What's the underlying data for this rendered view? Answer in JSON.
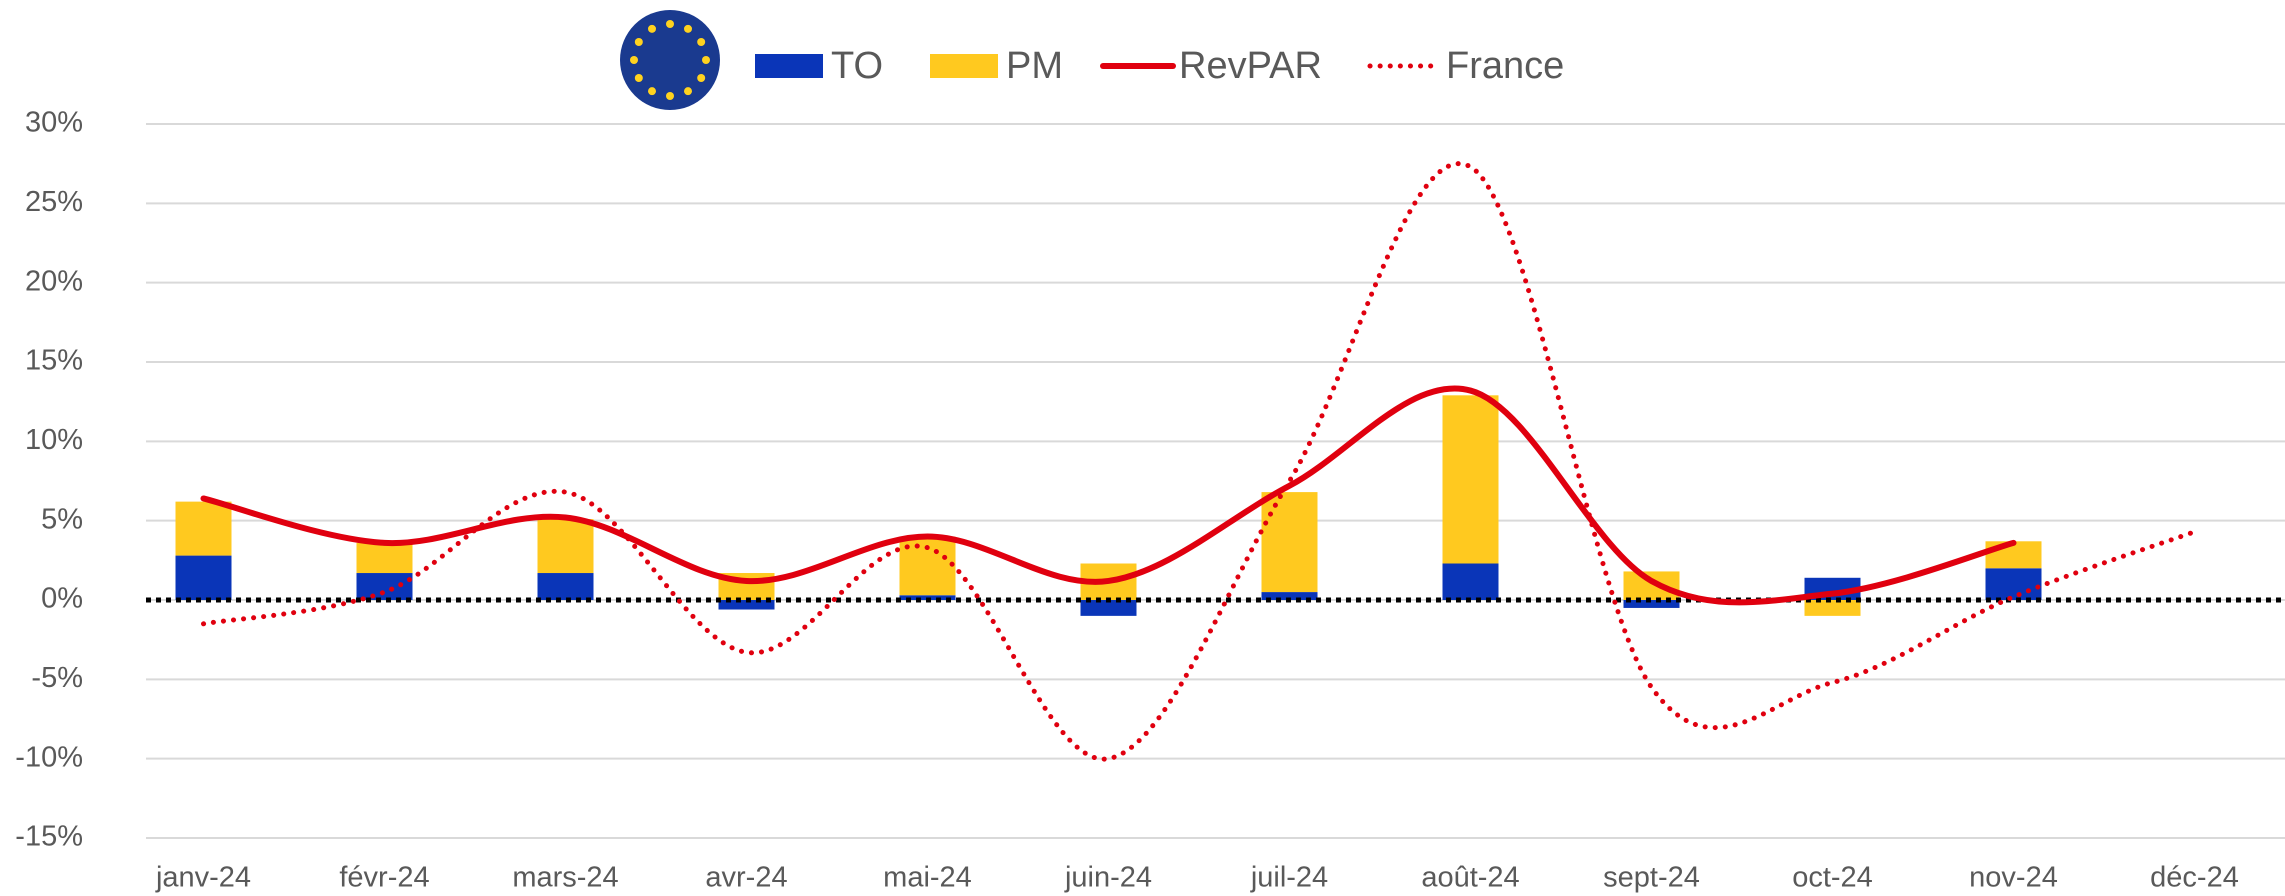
{
  "chart_data": {
    "type": "bar",
    "stacked": true,
    "categories": [
      "janv-24",
      "févr-24",
      "mars-24",
      "avr-24",
      "mai-24",
      "juin-24",
      "juil-24",
      "août-24",
      "sept-24",
      "oct-24",
      "nov-24",
      "déc-24"
    ],
    "series": [
      {
        "name": "TO",
        "type": "bar",
        "color": "#0a35b8",
        "values": [
          2.8,
          1.7,
          1.7,
          -0.6,
          0.3,
          -1.0,
          0.5,
          2.3,
          -0.5,
          1.4,
          2.0,
          null
        ]
      },
      {
        "name": "PM",
        "type": "bar",
        "color": "#ffc91f",
        "values": [
          3.4,
          1.9,
          3.4,
          1.7,
          3.7,
          2.3,
          6.3,
          10.6,
          1.8,
          -1.0,
          1.7,
          null
        ]
      },
      {
        "name": "RevPAR",
        "type": "line",
        "style": "solid",
        "color": "#e0000f",
        "values": [
          6.4,
          3.6,
          5.2,
          1.2,
          4.0,
          1.2,
          7.2,
          13.2,
          1.2,
          0.4,
          3.6,
          null
        ]
      },
      {
        "name": "France",
        "type": "line",
        "style": "dotted",
        "color": "#e0000f",
        "values": [
          -1.5,
          0.5,
          6.8,
          -3.3,
          3.3,
          -10.0,
          7.5,
          27.3,
          -5.5,
          -5.2,
          0.2,
          4.3
        ]
      }
    ],
    "ylim": [
      -15,
      30
    ],
    "yticks": [
      {
        "value": 30,
        "label": "30%"
      },
      {
        "value": 25,
        "label": "25%"
      },
      {
        "value": 20,
        "label": "20%"
      },
      {
        "value": 15,
        "label": "15%"
      },
      {
        "value": 10,
        "label": "10%"
      },
      {
        "value": 5,
        "label": "5%"
      },
      {
        "value": 0,
        "label": "0%"
      },
      {
        "value": -5,
        "label": "-5%"
      },
      {
        "value": -10,
        "label": "-10%"
      },
      {
        "value": -15,
        "label": "-15%"
      }
    ],
    "grid": true
  }
}
